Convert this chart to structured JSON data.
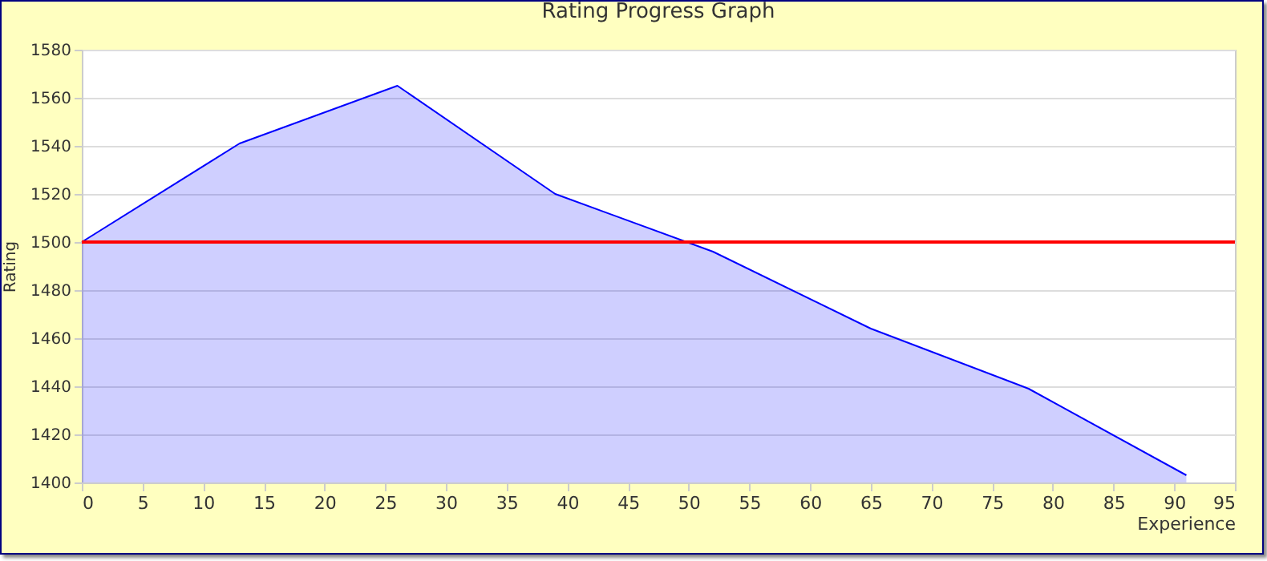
{
  "chart_data": {
    "type": "area",
    "title": "Rating Progress Graph",
    "xlabel": "Experience",
    "ylabel": "Rating",
    "x": [
      0,
      13,
      26,
      39,
      52,
      65,
      78,
      91
    ],
    "series": [
      {
        "color": "#0000ff",
        "values": [
          1500,
          1541,
          1565,
          1520,
          1496,
          1464,
          1439,
          1403
        ]
      }
    ],
    "xlim": [
      0,
      95
    ],
    "xticks": [
      0,
      5,
      10,
      15,
      20,
      25,
      30,
      35,
      40,
      45,
      50,
      55,
      60,
      65,
      70,
      75,
      80,
      85,
      90,
      95
    ],
    "ylim": [
      1400,
      1580
    ],
    "yticks": [
      1400,
      1420,
      1440,
      1460,
      1480,
      1500,
      1520,
      1540,
      1560,
      1580
    ],
    "grid": "y",
    "ref_lines": [
      {
        "axis": "y",
        "value": 1500,
        "color": "#ff0000"
      }
    ]
  }
}
